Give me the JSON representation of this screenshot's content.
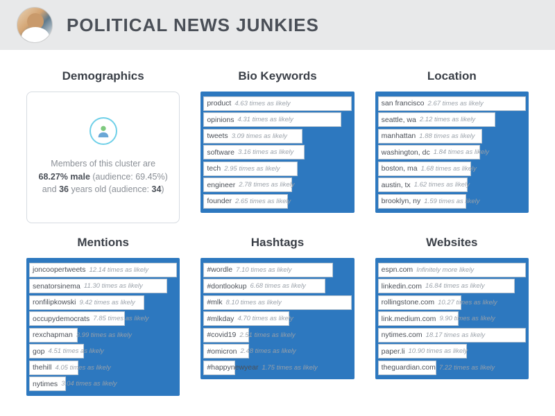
{
  "header": {
    "title": "POLITICAL NEWS JUNKIES"
  },
  "colors": {
    "bar_bg": "#2d78bf",
    "bar_fill": "#ffffff",
    "header_bg": "#e8e9ea",
    "title_color": "#4a4f57"
  },
  "demographics": {
    "title": "Demographics",
    "text_pre": "Members of this cluster are ",
    "male_pct": "68.27% male",
    "aud_male": " (audience: 69.45%) and ",
    "age": "36",
    "text_post": " years old (audience: ",
    "aud_age": "34",
    "close": ")"
  },
  "panels": [
    {
      "title": "Bio Keywords",
      "max": 4.63,
      "items": [
        {
          "name": "product",
          "val": 4.63,
          "suffix": "4.63 times as likely"
        },
        {
          "name": "opinions",
          "val": 4.31,
          "suffix": "4.31 times as likely"
        },
        {
          "name": "tweets",
          "val": 3.09,
          "suffix": "3.09 times as likely"
        },
        {
          "name": "software",
          "val": 3.16,
          "suffix": "3.16 times as likely"
        },
        {
          "name": "tech",
          "val": 2.95,
          "suffix": "2.95 times as likely"
        },
        {
          "name": "engineer",
          "val": 2.78,
          "suffix": "2.78 times as likely"
        },
        {
          "name": "founder",
          "val": 2.65,
          "suffix": "2.65 times as likely"
        }
      ]
    },
    {
      "title": "Location",
      "max": 2.67,
      "items": [
        {
          "name": "san francisco",
          "val": 2.67,
          "suffix": "2.67 times as likely"
        },
        {
          "name": "seattle, wa",
          "val": 2.12,
          "suffix": "2.12 times as likely"
        },
        {
          "name": "manhattan",
          "val": 1.88,
          "suffix": "1.88 times as likely"
        },
        {
          "name": "washington, dc",
          "val": 1.84,
          "suffix": "1.84 times as likely"
        },
        {
          "name": "boston, ma",
          "val": 1.68,
          "suffix": "1.68 times as likely"
        },
        {
          "name": "austin, tx",
          "val": 1.62,
          "suffix": "1.62 times as likely"
        },
        {
          "name": "brooklyn, ny",
          "val": 1.59,
          "suffix": "1.59 times as likely"
        }
      ]
    },
    {
      "title": "Mentions",
      "max": 12.14,
      "items": [
        {
          "name": "joncoopertweets",
          "val": 12.14,
          "suffix": "12.14 times as likely"
        },
        {
          "name": "senatorsinema",
          "val": 11.3,
          "suffix": "11.30 times as likely"
        },
        {
          "name": "ronfilipkowski",
          "val": 9.42,
          "suffix": "9.42 times as likely"
        },
        {
          "name": "occupydemocrats",
          "val": 7.85,
          "suffix": "7.85 times as likely"
        },
        {
          "name": "rexchapman",
          "val": 3.99,
          "suffix": "3.99 times as likely"
        },
        {
          "name": "gop",
          "val": 4.51,
          "suffix": "4.51 times as likely"
        },
        {
          "name": "thehill",
          "val": 4.05,
          "suffix": "4.05 times as likely"
        },
        {
          "name": "nytimes",
          "val": 3.04,
          "suffix": "3.04 times as likely"
        }
      ]
    },
    {
      "title": "Hashtags",
      "max": 8.1,
      "items": [
        {
          "name": "#wordle",
          "val": 7.1,
          "suffix": "7.10 times as likely"
        },
        {
          "name": "#dontlookup",
          "val": 6.68,
          "suffix": "6.68 times as likely"
        },
        {
          "name": "#mlk",
          "val": 8.1,
          "suffix": "8.10 times as likely"
        },
        {
          "name": "#mlkday",
          "val": 4.7,
          "suffix": "4.70 times as likely"
        },
        {
          "name": "#covid19",
          "val": 2.51,
          "suffix": "2.51 times as likely"
        },
        {
          "name": "#omicron",
          "val": 2.48,
          "suffix": "2.48 times as likely"
        },
        {
          "name": "#happynewyear",
          "val": 1.75,
          "suffix": "1.75 times as likely"
        }
      ]
    },
    {
      "title": "Websites",
      "max": 18.17,
      "items": [
        {
          "name": "espn.com",
          "val": 18.17,
          "suffix": "Infinitely more likely"
        },
        {
          "name": "linkedin.com",
          "val": 16.84,
          "suffix": "16.84 times as likely"
        },
        {
          "name": "rollingstone.com",
          "val": 10.27,
          "suffix": "10.27 times as likely"
        },
        {
          "name": "link.medium.com",
          "val": 9.9,
          "suffix": "9.90 times as likely"
        },
        {
          "name": "nytimes.com",
          "val": 18.17,
          "suffix": "18.17 times as likely"
        },
        {
          "name": "paper.li",
          "val": 10.9,
          "suffix": "10.90 times as likely"
        },
        {
          "name": "theguardian.com",
          "val": 7.22,
          "suffix": "7.22 times as likely"
        }
      ]
    }
  ]
}
